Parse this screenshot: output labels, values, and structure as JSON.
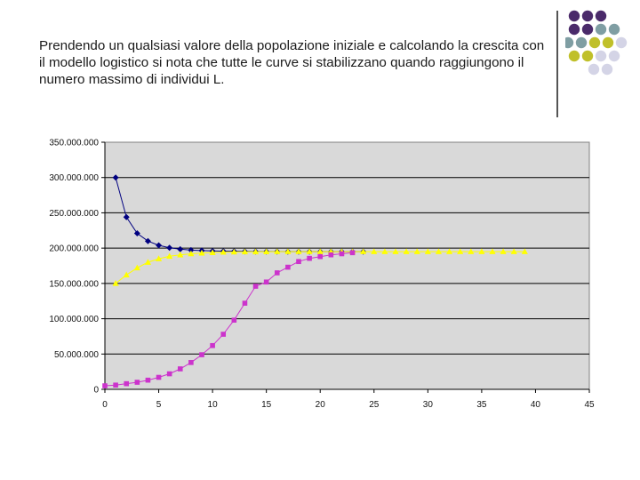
{
  "slide": {
    "text": "Prendendo un qualsiasi valore della popolazione iniziale e calcolando la crescita con il modello logistico si nota che tutte le curve si stabilizzano quando raggiungono il numero massimo di individui L."
  },
  "decor": {
    "dot_colors": [
      "#4a2a6a",
      "#7f9ea3",
      "#c0c02a",
      "#d4d4e6"
    ],
    "divider_color": "#555555"
  },
  "chart_data": {
    "type": "scatter",
    "title": "",
    "xlabel": "",
    "ylabel": "",
    "xlim": [
      0,
      45
    ],
    "ylim": [
      0,
      350000000
    ],
    "x_ticks": [
      0,
      5,
      10,
      15,
      20,
      25,
      30,
      35,
      40,
      45
    ],
    "x_tick_labels": [
      "0",
      "5",
      "10",
      "15",
      "20",
      "25",
      "30",
      "35",
      "40",
      "45"
    ],
    "y_ticks": [
      0,
      50000000,
      100000000,
      150000000,
      200000000,
      250000000,
      300000000,
      350000000
    ],
    "y_tick_labels": [
      "0",
      "50.000.000",
      "100.000.000",
      "150.000.000",
      "200.000.000",
      "250.000.000",
      "300.000.000",
      "350.000.000"
    ],
    "plot_background": "#d9d9d9",
    "gridlines": "horizontal",
    "legend": "none",
    "series": [
      {
        "color": "#000080",
        "marker": "diamond",
        "x": [
          1,
          2,
          3,
          4,
          5,
          6,
          7,
          8,
          9,
          10,
          11,
          12,
          13,
          14,
          15,
          16,
          17,
          18,
          19,
          20,
          21,
          22,
          23,
          24
        ],
        "values": [
          300000000,
          244000000,
          221000000,
          210000000,
          204000000,
          200500000,
          198500000,
          197200000,
          196500000,
          196000000,
          195600000,
          195400000,
          195300000,
          195200000,
          195100000,
          195100000,
          195000000,
          195000000,
          195000000,
          195000000,
          195000000,
          195000000,
          195000000,
          195000000
        ]
      },
      {
        "color": "#ffff00",
        "marker": "triangle",
        "x": [
          1,
          2,
          3,
          4,
          5,
          6,
          7,
          8,
          9,
          10,
          11,
          12,
          13,
          14,
          15,
          16,
          17,
          18,
          19,
          20,
          21,
          22,
          23,
          24,
          25,
          26,
          27,
          28,
          29,
          30,
          31,
          32,
          33,
          34,
          35,
          36,
          37,
          38,
          39
        ],
        "values": [
          150000000,
          162000000,
          172000000,
          180000000,
          185000000,
          188500000,
          190500000,
          192000000,
          193000000,
          193700000,
          194200000,
          194500000,
          194700000,
          194800000,
          194900000,
          195000000,
          195000000,
          195000000,
          195000000,
          195000000,
          195000000,
          195000000,
          195000000,
          195000000,
          195000000,
          195000000,
          195000000,
          195000000,
          195000000,
          195000000,
          195000000,
          195000000,
          195000000,
          195000000,
          195000000,
          195000000,
          195000000,
          195000000,
          195000000
        ]
      },
      {
        "color": "#cc33cc",
        "marker": "square",
        "x": [
          0,
          1,
          2,
          3,
          4,
          5,
          6,
          7,
          8,
          9,
          10,
          11,
          12,
          13,
          14,
          15,
          16,
          17,
          18,
          19,
          20,
          21,
          22,
          23
        ],
        "values": [
          5000000,
          6000000,
          8000000,
          10000000,
          13000000,
          17000000,
          22000000,
          29000000,
          38000000,
          49000000,
          62000000,
          78000000,
          98000000,
          122000000,
          146000000,
          152000000,
          165000000,
          173000000,
          181000000,
          185500000,
          188000000,
          190500000,
          192000000,
          193500000
        ]
      }
    ]
  }
}
